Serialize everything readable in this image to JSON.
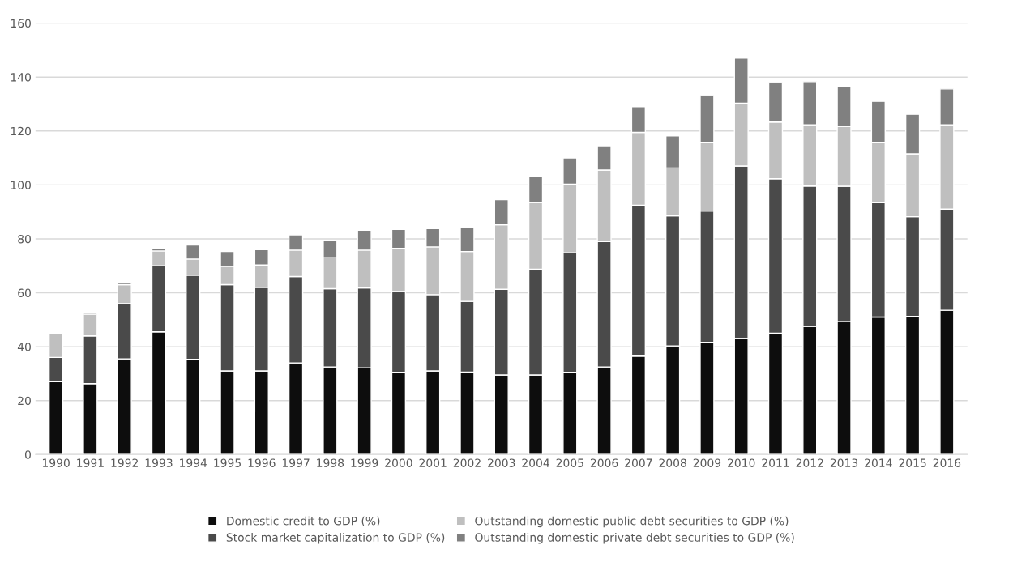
{
  "chart_data": {
    "type": "bar",
    "stacked": true,
    "categories": [
      "1990",
      "1991",
      "1992",
      "1993",
      "1994",
      "1995",
      "1996",
      "1997",
      "1998",
      "1999",
      "2000",
      "2001",
      "2002",
      "2003",
      "2004",
      "2005",
      "2006",
      "2007",
      "2008",
      "2009",
      "2010",
      "2011",
      "2012",
      "2013",
      "2014",
      "2015",
      "2016"
    ],
    "series": [
      {
        "name": "Domestic credit to GDP (%)",
        "color": "#0d0d0d",
        "values": [
          27,
          26.3,
          35.5,
          45.5,
          35.3,
          31,
          31,
          34,
          32.5,
          32.2,
          30.5,
          31,
          30.6,
          29.5,
          29.5,
          30.5,
          32.5,
          36.5,
          40.3,
          41.6,
          43,
          45,
          47.5,
          49.4,
          51,
          51.2,
          53.5
        ]
      },
      {
        "name": "Stock market capitalization to GDP (%)",
        "color": "#4a4a4a",
        "values": [
          9,
          17.7,
          20.5,
          24.5,
          31.2,
          32,
          31,
          32,
          29,
          29.6,
          30,
          28.3,
          26.2,
          31.8,
          39.2,
          44.3,
          46.5,
          56,
          48.2,
          48.7,
          64,
          57.3,
          52.1,
          50.1,
          42.4,
          37,
          37.5
        ]
      },
      {
        "name": "Outstanding domestic public debt securities to GDP (%)",
        "color": "#bfbfbf",
        "values": [
          9,
          8,
          7,
          5.5,
          6,
          6.8,
          8.3,
          9.8,
          11.5,
          14,
          16,
          17.7,
          18.5,
          23.9,
          24.8,
          25.5,
          26.5,
          27,
          17.8,
          25.5,
          23.3,
          21,
          22.7,
          22.2,
          22.4,
          23.3,
          31.3
        ]
      },
      {
        "name": "Outstanding domestic private debt securities to GDP (%)",
        "color": "#808080",
        "values": [
          0.3,
          0.5,
          1,
          0.8,
          5.2,
          5.5,
          5.7,
          5.7,
          6.3,
          7.4,
          7,
          6.8,
          8.9,
          9.3,
          9.5,
          9.7,
          9,
          9.5,
          11.9,
          17.4,
          16.7,
          14.7,
          16,
          14.9,
          15.2,
          14.7,
          13.3
        ]
      }
    ],
    "ylim": [
      0,
      160
    ],
    "yticks": [
      0,
      20,
      40,
      60,
      80,
      100,
      120,
      140,
      160
    ],
    "grid": "y",
    "legend": "bottom"
  }
}
